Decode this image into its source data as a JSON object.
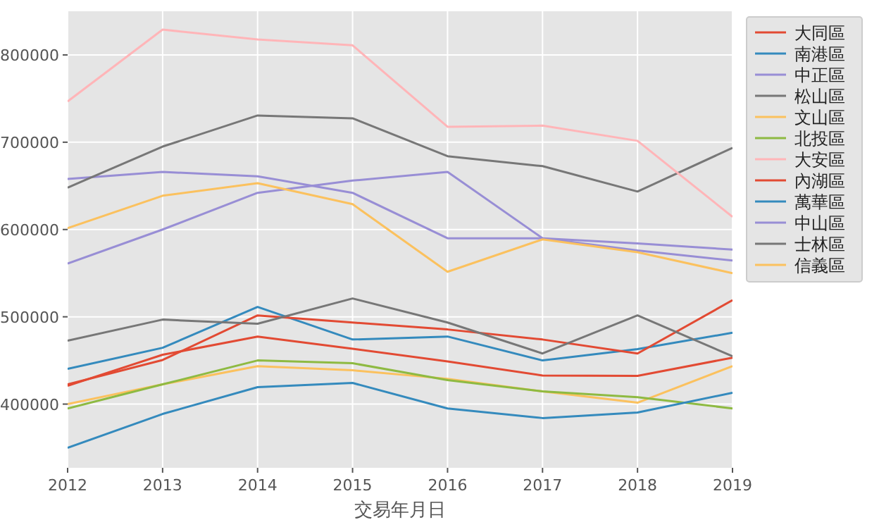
{
  "chart_data": {
    "type": "line",
    "xlabel": "交易年月日",
    "x": [
      2012,
      2013,
      2014,
      2015,
      2016,
      2017,
      2018,
      2019
    ],
    "xlim": [
      2012,
      2019
    ],
    "xticks": [
      2012,
      2013,
      2014,
      2015,
      2016,
      2017,
      2018,
      2019
    ],
    "ylim": [
      327000,
      850000
    ],
    "yticks": [
      400000,
      500000,
      600000,
      700000,
      800000
    ],
    "grid": true,
    "legend": "right",
    "series": [
      {
        "name": "大同區",
        "color": "#e24a33",
        "values": [
          421000,
          456500,
          477400,
          463400,
          448900,
          432700,
          432300,
          453200
        ]
      },
      {
        "name": "南港區",
        "color": "#348abd",
        "values": [
          440300,
          464500,
          511300,
          474000,
          477400,
          450000,
          463000,
          481700
        ]
      },
      {
        "name": "中正區",
        "color": "#988ed5",
        "values": [
          658000,
          666000,
          661000,
          642000,
          590000,
          590000,
          584000,
          577000
        ]
      },
      {
        "name": "松山區",
        "color": "#777777",
        "values": [
          648000,
          695000,
          730600,
          727400,
          684000,
          672600,
          643500,
          693500
        ]
      },
      {
        "name": "文山區",
        "color": "#fbc15e",
        "values": [
          400000,
          422600,
          443500,
          438700,
          429000,
          414500,
          401600,
          443500
        ]
      },
      {
        "name": "北投區",
        "color": "#8eba42",
        "values": [
          395000,
          422600,
          450000,
          446800,
          427400,
          414500,
          408000,
          395000
        ]
      },
      {
        "name": "大安區",
        "color": "#ffb5b8",
        "values": [
          746700,
          829000,
          817700,
          811000,
          717700,
          719000,
          701600,
          614500
        ]
      },
      {
        "name": "內湖區",
        "color": "#e24a33",
        "values": [
          422600,
          450500,
          501600,
          493500,
          485500,
          474000,
          458000,
          519000
        ]
      },
      {
        "name": "萬華區",
        "color": "#348abd",
        "values": [
          350000,
          388700,
          419400,
          424200,
          395000,
          384000,
          390300,
          413000
        ]
      },
      {
        "name": "中山區",
        "color": "#988ed5",
        "values": [
          561000,
          600000,
          642000,
          656000,
          666000,
          590000,
          576000,
          564500
        ]
      },
      {
        "name": "士林區",
        "color": "#777777",
        "values": [
          472600,
          496800,
          492000,
          521000,
          493500,
          458000,
          501600,
          454800
        ]
      },
      {
        "name": "信義區",
        "color": "#fbc15e",
        "values": [
          601600,
          638700,
          653000,
          629000,
          551600,
          588700,
          574000,
          550000
        ]
      }
    ]
  }
}
